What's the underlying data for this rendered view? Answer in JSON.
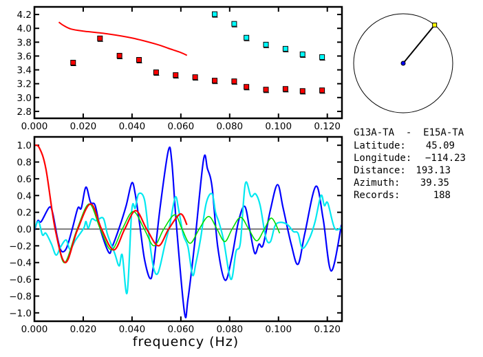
{
  "info": {
    "pair": "G13A-TA  -  E15A-TA",
    "rows": [
      {
        "label": "Latitude:",
        "value": "45.09"
      },
      {
        "label": "Longitude:",
        "value": "-114.23"
      },
      {
        "label": "Distance:",
        "value": "193.13"
      },
      {
        "label": "Azimuth:",
        "value": "39.35"
      },
      {
        "label": "Records:",
        "value": "188"
      }
    ]
  },
  "map": {
    "azimuth_deg": 39.35,
    "station_color": "#0000ff",
    "target_color": "#ffff00"
  },
  "chart_data": [
    {
      "type": "scatter",
      "title": "",
      "xlabel": "",
      "ylabel": "",
      "xlim": [
        0.0,
        0.126
      ],
      "ylim": [
        2.7,
        4.31
      ],
      "xticks": [
        "0.000",
        "0.020",
        "0.040",
        "0.060",
        "0.080",
        "0.100",
        "0.120"
      ],
      "yticks": [
        "2.8",
        "3.0",
        "3.2",
        "3.4",
        "3.6",
        "3.8",
        "4.0",
        "4.2"
      ],
      "grid": false,
      "series": [
        {
          "color": "#ff0000",
          "kind": "markers",
          "points": [
            [
              0.016,
              3.5
            ],
            [
              0.027,
              3.85
            ],
            [
              0.035,
              3.6
            ],
            [
              0.043,
              3.54
            ],
            [
              0.05,
              3.36
            ],
            [
              0.058,
              3.32
            ],
            [
              0.066,
              3.29
            ],
            [
              0.074,
              3.24
            ],
            [
              0.082,
              3.23
            ],
            [
              0.087,
              3.15
            ],
            [
              0.095,
              3.11
            ],
            [
              0.103,
              3.12
            ],
            [
              0.11,
              3.09
            ],
            [
              0.118,
              3.1
            ]
          ]
        },
        {
          "color": "#00ffff",
          "kind": "markers",
          "points": [
            [
              0.074,
              4.2
            ],
            [
              0.082,
              4.06
            ],
            [
              0.087,
              3.86
            ],
            [
              0.095,
              3.76
            ],
            [
              0.103,
              3.7
            ],
            [
              0.11,
              3.62
            ],
            [
              0.118,
              3.58
            ]
          ]
        },
        {
          "color": "#ff0000",
          "kind": "line",
          "points": [
            [
              0.01,
              4.09
            ],
            [
              0.012,
              4.04
            ],
            [
              0.015,
              3.99
            ],
            [
              0.02,
              3.96
            ],
            [
              0.03,
              3.92
            ],
            [
              0.04,
              3.86
            ],
            [
              0.05,
              3.77
            ],
            [
              0.055,
              3.71
            ],
            [
              0.06,
              3.65
            ],
            [
              0.0625,
              3.61
            ]
          ]
        }
      ]
    },
    {
      "type": "line",
      "title": "",
      "xlabel": "frequency (Hz)",
      "ylabel": "",
      "xlim": [
        0.0,
        0.126
      ],
      "ylim": [
        -1.1,
        1.1
      ],
      "xticks": [
        "0.000",
        "0.020",
        "0.040",
        "0.060",
        "0.080",
        "0.100",
        "0.120"
      ],
      "yticks": [
        "-1.0",
        "-0.8",
        "-0.6",
        "-0.4",
        "-0.2",
        "0.0",
        "0.2",
        "0.4",
        "0.6",
        "0.8",
        "1.0"
      ],
      "grid": false,
      "zero_line": true,
      "series": [
        {
          "color": "#0000ff",
          "width": 2.2,
          "points": [
            [
              0,
              -0.02
            ],
            [
              0.0014,
              0.1
            ],
            [
              0.0028,
              0.09
            ],
            [
              0.0061,
              0.26
            ],
            [
              0.0075,
              0.19
            ],
            [
              0.0094,
              -0.1
            ],
            [
              0.011,
              -0.26
            ],
            [
              0.0131,
              -0.23
            ],
            [
              0.0155,
              0.0
            ],
            [
              0.0178,
              0.25
            ],
            [
              0.0192,
              0.25
            ],
            [
              0.0211,
              0.5
            ],
            [
              0.023,
              0.32
            ],
            [
              0.0249,
              0.28
            ],
            [
              0.0272,
              -0.02
            ],
            [
              0.0305,
              -0.28
            ],
            [
              0.0319,
              -0.21
            ],
            [
              0.0347,
              0.01
            ],
            [
              0.0376,
              0.28
            ],
            [
              0.0399,
              0.55
            ],
            [
              0.0413,
              0.42
            ],
            [
              0.0432,
              0.04
            ],
            [
              0.0451,
              -0.36
            ],
            [
              0.0474,
              -0.59
            ],
            [
              0.0488,
              -0.43
            ],
            [
              0.0516,
              0.28
            ],
            [
              0.0549,
              0.94
            ],
            [
              0.0563,
              0.8
            ],
            [
              0.0582,
              0.04
            ],
            [
              0.0615,
              -1.0
            ],
            [
              0.0629,
              -0.84
            ],
            [
              0.0657,
              -0.16
            ],
            [
              0.0693,
              0.83
            ],
            [
              0.0709,
              0.72
            ],
            [
              0.0728,
              0.5
            ],
            [
              0.0751,
              -0.21
            ],
            [
              0.0781,
              -0.61
            ],
            [
              0.0808,
              -0.35
            ],
            [
              0.0836,
              0.09
            ],
            [
              0.0862,
              0.27
            ],
            [
              0.0883,
              -0.02
            ],
            [
              0.0903,
              -0.29
            ],
            [
              0.092,
              -0.18
            ],
            [
              0.0937,
              -0.19
            ],
            [
              0.0967,
              0.23
            ],
            [
              0.0996,
              0.53
            ],
            [
              0.1019,
              0.25
            ],
            [
              0.1052,
              -0.18
            ],
            [
              0.108,
              -0.42
            ],
            [
              0.1108,
              -0.05
            ],
            [
              0.1153,
              0.51
            ],
            [
              0.1183,
              0.12
            ],
            [
              0.1216,
              -0.5
            ],
            [
              0.1258,
              0.05
            ]
          ]
        },
        {
          "color": "#00e8f0",
          "width": 2.2,
          "points": [
            [
              0,
              0
            ],
            [
              0.0017,
              0.09
            ],
            [
              0.0033,
              -0.07
            ],
            [
              0.0047,
              -0.05
            ],
            [
              0.007,
              -0.18
            ],
            [
              0.0089,
              -0.31
            ],
            [
              0.0108,
              -0.21
            ],
            [
              0.013,
              -0.13
            ],
            [
              0.0146,
              -0.24
            ],
            [
              0.0169,
              -0.13
            ],
            [
              0.0202,
              0.01
            ],
            [
              0.0211,
              0.09
            ],
            [
              0.0221,
              0.01
            ],
            [
              0.0235,
              0.12
            ],
            [
              0.0254,
              0.1
            ],
            [
              0.0282,
              0.13
            ],
            [
              0.03,
              -0.07
            ],
            [
              0.0329,
              -0.29
            ],
            [
              0.0347,
              -0.44
            ],
            [
              0.036,
              -0.31
            ],
            [
              0.038,
              -0.76
            ],
            [
              0.0399,
              0.23
            ],
            [
              0.0413,
              0.25
            ],
            [
              0.0427,
              0.42
            ],
            [
              0.0451,
              0.35
            ],
            [
              0.047,
              -0.1
            ],
            [
              0.0488,
              -0.46
            ],
            [
              0.0507,
              -0.52
            ],
            [
              0.0535,
              -0.18
            ],
            [
              0.0554,
              0.04
            ],
            [
              0.0577,
              0.38
            ],
            [
              0.0591,
              0.23
            ],
            [
              0.061,
              -0.07
            ],
            [
              0.0629,
              -0.21
            ],
            [
              0.0648,
              -0.55
            ],
            [
              0.0662,
              -0.4
            ],
            [
              0.068,
              -0.13
            ],
            [
              0.0704,
              0.31
            ],
            [
              0.0728,
              0.42
            ],
            [
              0.0742,
              0.2
            ],
            [
              0.0756,
              0.08
            ],
            [
              0.0775,
              -0.13
            ],
            [
              0.0805,
              -0.6
            ],
            [
              0.0826,
              -0.27
            ],
            [
              0.0844,
              -0.16
            ],
            [
              0.0864,
              0.54
            ],
            [
              0.0887,
              0.39
            ],
            [
              0.0906,
              0.42
            ],
            [
              0.0925,
              0.28
            ],
            [
              0.0948,
              -0.1
            ],
            [
              0.0967,
              -0.15
            ],
            [
              0.0986,
              0.04
            ],
            [
              0.1009,
              0.08
            ],
            [
              0.1038,
              0.05
            ],
            [
              0.1061,
              -0.03
            ],
            [
              0.108,
              -0.05
            ],
            [
              0.1098,
              -0.23
            ],
            [
              0.1127,
              -0.11
            ],
            [
              0.115,
              0.09
            ],
            [
              0.1174,
              0.4
            ],
            [
              0.1188,
              0.28
            ],
            [
              0.1202,
              0.31
            ],
            [
              0.123,
              0.01
            ],
            [
              0.1258,
              0.02
            ]
          ]
        },
        {
          "color": "#00dd00",
          "width": 1.6,
          "points": [
            [
              0.0095,
              -0.15
            ],
            [
              0.0125,
              -0.4
            ],
            [
              0.0175,
              0.0
            ],
            [
              0.0225,
              0.3
            ],
            [
              0.027,
              0.0
            ],
            [
              0.0315,
              -0.25
            ],
            [
              0.036,
              0.0
            ],
            [
              0.0405,
              0.21
            ],
            [
              0.045,
              0.0
            ],
            [
              0.049,
              -0.2
            ],
            [
              0.053,
              0.0
            ],
            [
              0.0575,
              0.17
            ],
            [
              0.0605,
              0.0
            ],
            [
              0.0638,
              -0.17
            ],
            [
              0.0675,
              0.0
            ],
            [
              0.0714,
              0.15
            ],
            [
              0.0748,
              0.0
            ],
            [
              0.078,
              -0.15
            ],
            [
              0.081,
              0.0
            ],
            [
              0.0845,
              0.14
            ],
            [
              0.0878,
              0.0
            ],
            [
              0.0911,
              -0.14
            ],
            [
              0.0942,
              0.0
            ],
            [
              0.0972,
              0.13
            ],
            [
              0.1005,
              -0.05
            ]
          ]
        },
        {
          "color": "#ff0000",
          "width": 2.2,
          "points": [
            [
              0,
              1.0
            ],
            [
              0.002,
              0.97
            ],
            [
              0.0047,
              0.72
            ],
            [
              0.0085,
              0.0
            ],
            [
              0.0127,
              -0.4
            ],
            [
              0.0175,
              -0.02
            ],
            [
              0.023,
              0.3
            ],
            [
              0.0275,
              0.0
            ],
            [
              0.0325,
              -0.25
            ],
            [
              0.037,
              0.0
            ],
            [
              0.0415,
              0.22
            ],
            [
              0.046,
              0.0
            ],
            [
              0.0508,
              -0.2
            ],
            [
              0.055,
              0.0
            ],
            [
              0.0598,
              0.18
            ],
            [
              0.0625,
              0.05
            ]
          ]
        }
      ]
    }
  ]
}
